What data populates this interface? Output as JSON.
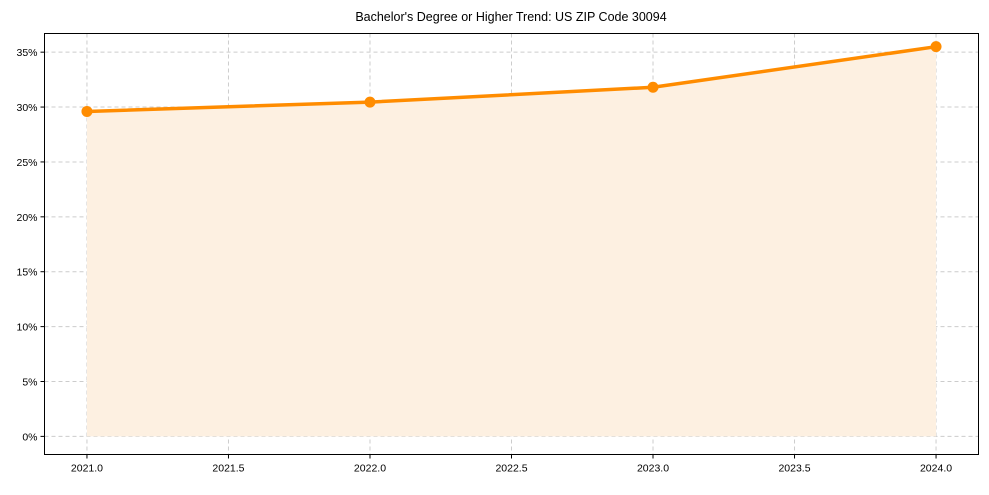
{
  "chart_data": {
    "type": "line",
    "title": "Bachelor's Degree or Higher Trend: US ZIP Code 30094",
    "xlabel": "",
    "ylabel": "",
    "x": [
      2021,
      2022,
      2023,
      2024
    ],
    "series": [
      {
        "name": "Bachelor's Degree or Higher",
        "values": [
          29.6,
          30.45,
          31.8,
          35.5
        ],
        "color": "#ff8c00",
        "fill": "#fdf0e1"
      }
    ],
    "xlim": [
      2020.85,
      2024.15
    ],
    "ylim": [
      -1.65,
      36.7
    ],
    "xticks": [
      2021.0,
      2021.5,
      2022.0,
      2022.5,
      2023.0,
      2023.5,
      2024.0
    ],
    "xtick_labels": [
      "2021.0",
      "2021.5",
      "2022.0",
      "2022.5",
      "2023.0",
      "2023.5",
      "2024.0"
    ],
    "yticks": [
      0,
      5,
      10,
      15,
      20,
      25,
      30,
      35
    ],
    "ytick_labels": [
      "0%",
      "5%",
      "10%",
      "15%",
      "20%",
      "25%",
      "30%",
      "35%"
    ],
    "grid": true,
    "legend": "none"
  }
}
